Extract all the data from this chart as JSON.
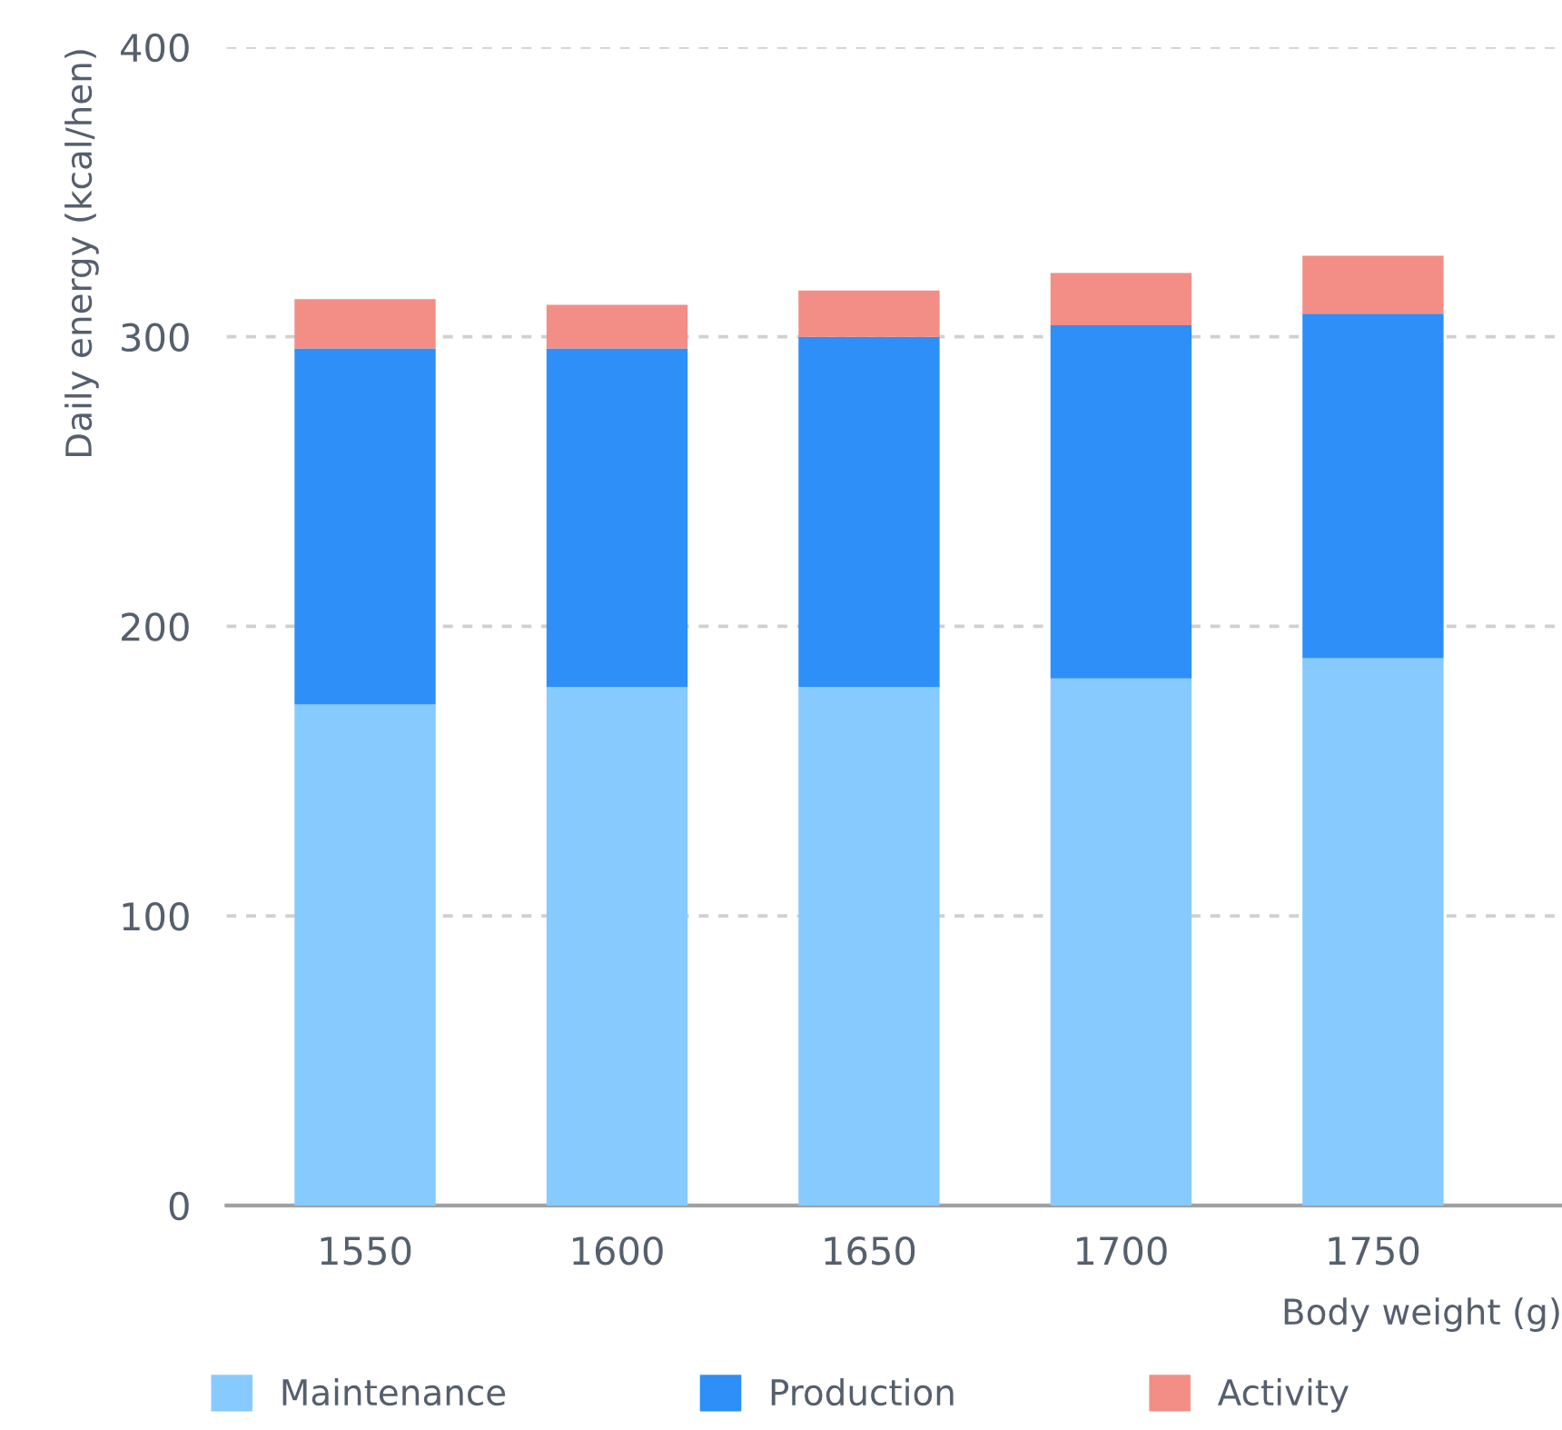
{
  "chart_data": {
    "type": "bar",
    "stacked": true,
    "xlabel": "Body weight (g)",
    "ylabel": "Daily energy (kcal/hen)",
    "categories": [
      "1550",
      "1600",
      "1650",
      "1700",
      "1750"
    ],
    "series": [
      {
        "name": "Maintenance",
        "color": "#87cafe",
        "values": [
          173,
          179,
          179,
          182,
          189
        ]
      },
      {
        "name": "Production",
        "color": "#2d8ff7",
        "values": [
          123,
          117,
          121,
          122,
          119
        ]
      },
      {
        "name": "Activity",
        "color": "#f28e86",
        "values": [
          17,
          15,
          16,
          18,
          20
        ]
      }
    ],
    "ylim": [
      0,
      400
    ],
    "yticks": [
      0,
      100,
      200,
      300,
      400
    ],
    "grid": "y",
    "legend": "bottom"
  }
}
